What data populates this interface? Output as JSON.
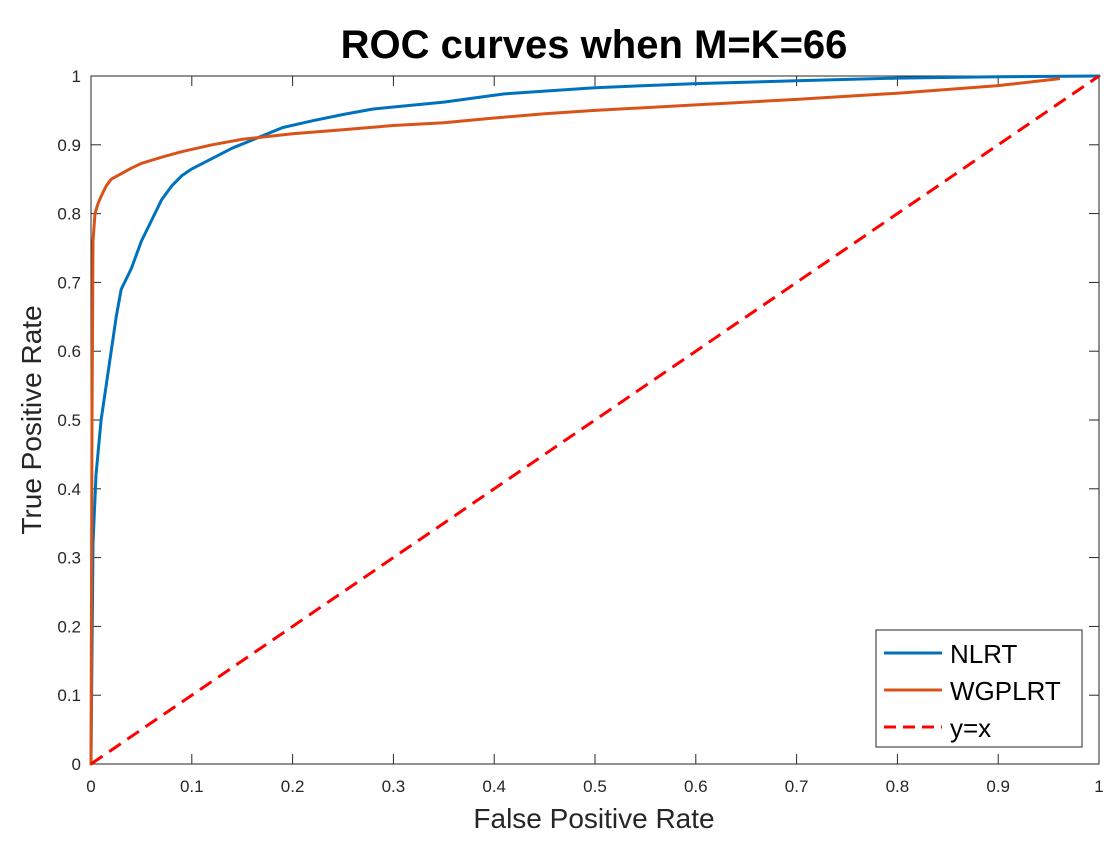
{
  "chart_data": {
    "type": "line",
    "title": "ROC curves when M=K=66",
    "xlabel": "False Positive Rate",
    "ylabel": "True Positive Rate",
    "xlim": [
      0,
      1
    ],
    "ylim": [
      0,
      1
    ],
    "x_ticks": [
      "0",
      "0.1",
      "0.2",
      "0.3",
      "0.4",
      "0.5",
      "0.6",
      "0.7",
      "0.8",
      "0.9",
      "1"
    ],
    "y_ticks": [
      "0",
      "0.1",
      "0.2",
      "0.3",
      "0.4",
      "0.5",
      "0.6",
      "0.7",
      "0.8",
      "0.9",
      "1"
    ],
    "grid": false,
    "legend_position": "bottom-right",
    "series": [
      {
        "name": "NLRT",
        "color": "#0072BD",
        "style": "solid",
        "points": [
          [
            0,
            0
          ],
          [
            0.002,
            0.32
          ],
          [
            0.005,
            0.42
          ],
          [
            0.01,
            0.5
          ],
          [
            0.02,
            0.6
          ],
          [
            0.025,
            0.65
          ],
          [
            0.03,
            0.69
          ],
          [
            0.04,
            0.72
          ],
          [
            0.05,
            0.76
          ],
          [
            0.06,
            0.79
          ],
          [
            0.07,
            0.82
          ],
          [
            0.08,
            0.84
          ],
          [
            0.09,
            0.855
          ],
          [
            0.1,
            0.865
          ],
          [
            0.12,
            0.88
          ],
          [
            0.14,
            0.895
          ],
          [
            0.16,
            0.907
          ],
          [
            0.19,
            0.925
          ],
          [
            0.22,
            0.935
          ],
          [
            0.25,
            0.944
          ],
          [
            0.28,
            0.952
          ],
          [
            0.3,
            0.955
          ],
          [
            0.35,
            0.962
          ],
          [
            0.41,
            0.974
          ],
          [
            0.45,
            0.978
          ],
          [
            0.5,
            0.983
          ],
          [
            0.55,
            0.986
          ],
          [
            0.6,
            0.989
          ],
          [
            0.7,
            0.993
          ],
          [
            0.8,
            0.997
          ],
          [
            0.9,
            0.999
          ],
          [
            1,
            1
          ]
        ]
      },
      {
        "name": "WGPLRT",
        "color": "#D95319",
        "style": "solid",
        "points": [
          [
            0,
            0
          ],
          [
            0.001,
            0.5
          ],
          [
            0.002,
            0.76
          ],
          [
            0.004,
            0.8
          ],
          [
            0.007,
            0.815
          ],
          [
            0.01,
            0.825
          ],
          [
            0.015,
            0.84
          ],
          [
            0.02,
            0.85
          ],
          [
            0.03,
            0.858
          ],
          [
            0.04,
            0.866
          ],
          [
            0.05,
            0.873
          ],
          [
            0.07,
            0.882
          ],
          [
            0.09,
            0.89
          ],
          [
            0.12,
            0.9
          ],
          [
            0.15,
            0.908
          ],
          [
            0.2,
            0.916
          ],
          [
            0.25,
            0.922
          ],
          [
            0.3,
            0.928
          ],
          [
            0.35,
            0.932
          ],
          [
            0.4,
            0.939
          ],
          [
            0.45,
            0.945
          ],
          [
            0.5,
            0.95
          ],
          [
            0.6,
            0.958
          ],
          [
            0.7,
            0.966
          ],
          [
            0.8,
            0.975
          ],
          [
            0.9,
            0.986
          ],
          [
            0.96,
            0.996
          ]
        ]
      },
      {
        "name": "y=x",
        "color": "#FF0000",
        "style": "dashed",
        "points": [
          [
            0,
            0
          ],
          [
            1,
            1
          ]
        ]
      }
    ]
  }
}
